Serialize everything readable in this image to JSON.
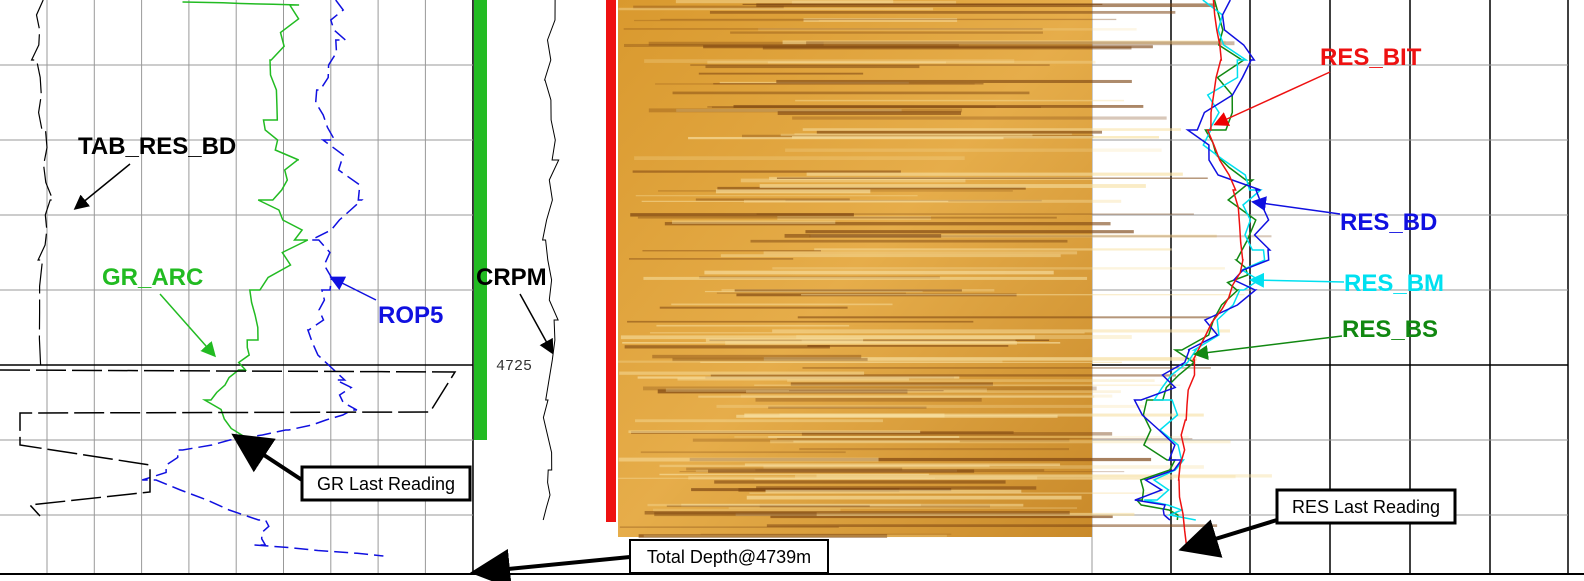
{
  "left_track": {
    "curve_labels": {
      "tab_res_bd": "TAB_RES_BD",
      "gr_arc": "GR_ARC",
      "rop5": "ROP5"
    },
    "callout": "GR Last Reading"
  },
  "depth_track": {
    "curve_label": "CRPM",
    "depth_label": "4725"
  },
  "image_track": {
    "callout": "Total Depth@4739m"
  },
  "right_track": {
    "curve_labels": {
      "res_bit": "RES_BIT",
      "res_bd": "RES_BD",
      "res_bm": "RES_BM",
      "res_bs": "RES_BS"
    },
    "callout": "RES Last Reading"
  }
}
